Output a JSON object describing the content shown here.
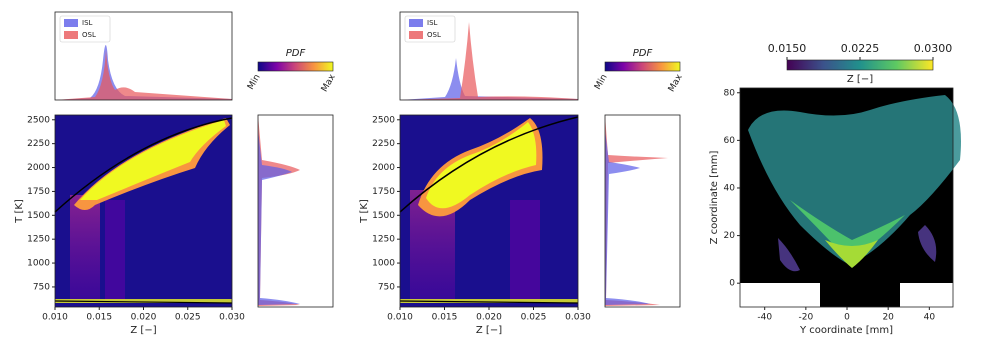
{
  "chart_data": [
    {
      "type": "joint-pdf",
      "xlabel": "Z [−]",
      "ylabel": "T [K]",
      "xlim": [
        0.01,
        0.03
      ],
      "xticks": [
        {
          "value": 0.01,
          "label": "0.010"
        },
        0.015,
        {
          "value": 0.02,
          "label": "0.020"
        },
        0.025,
        {
          "value": 0.03,
          "label": "0.030"
        }
      ],
      "ylim": [
        540,
        2550
      ],
      "yticks": [
        750,
        1000,
        1250,
        1500,
        1750,
        2000,
        2250,
        2500
      ],
      "series": [
        {
          "name": "ISL",
          "color": "#5b5ce8"
        },
        {
          "name": "OSL",
          "color": "#e8575a"
        }
      ],
      "colorbar_title": "PDF",
      "colorbar_ticks": [
        "Min",
        "Max"
      ]
    },
    {
      "type": "joint-pdf",
      "xlabel": "Z [−]",
      "ylabel": "T [K]",
      "xlim": [
        0.01,
        0.03
      ],
      "xticks": [
        {
          "value": 0.01,
          "label": "0.010"
        },
        0.015,
        {
          "value": 0.02,
          "label": "0.020"
        },
        0.025,
        {
          "value": 0.03,
          "label": "0.030"
        }
      ],
      "ylim": [
        540,
        2550
      ],
      "yticks": [
        750,
        1000,
        1250,
        1500,
        1750,
        2000,
        2250,
        2500
      ],
      "series": [
        {
          "name": "ISL",
          "color": "#5b5ce8"
        },
        {
          "name": "OSL",
          "color": "#e8575a"
        }
      ],
      "colorbar_title": "PDF",
      "colorbar_ticks": [
        "Min",
        "Max"
      ]
    },
    {
      "type": "scatter-map",
      "xlabel": "Y coordinate [mm]",
      "ylabel": "Z coordinate [mm]",
      "xlim": [
        -52,
        51.5
      ],
      "xticks": [
        -40,
        -20,
        0,
        20,
        40
      ],
      "ylim": [
        -10,
        82
      ],
      "yticks": [
        0,
        20,
        40,
        60,
        80
      ],
      "colorbar_title": "Z [−]",
      "colorbar_lim": [
        0.015,
        0.03
      ],
      "colorbar_ticks": [
        {
          "value": 0.015,
          "label": "0.0150"
        },
        0.0225,
        {
          "value": 0.03,
          "label": "0.0300"
        }
      ]
    }
  ]
}
